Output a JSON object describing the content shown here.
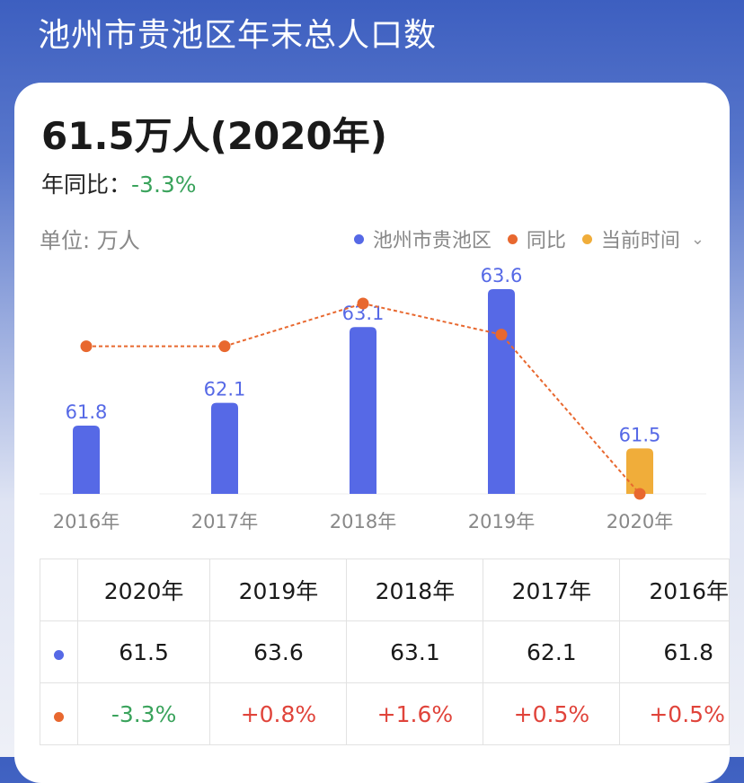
{
  "title": "池州市贵池区年末总人口数",
  "headline": "61.5万人(2020年)",
  "yoy": {
    "label": "年同比：",
    "value": "-3.3%"
  },
  "unit": "单位: 万人",
  "legend": [
    {
      "label": "池州市贵池区",
      "color": "#5669e6"
    },
    {
      "label": "同比",
      "color": "#e8682f"
    },
    {
      "label": "当前时间",
      "color": "#f0ad3a"
    }
  ],
  "legend_dropdown_icon": "chevron-down-icon",
  "chart_data": {
    "type": "bar",
    "categories": [
      "2016年",
      "2017年",
      "2018年",
      "2019年",
      "2020年"
    ],
    "series": [
      {
        "name": "池州市贵池区",
        "type": "bar",
        "values": [
          61.8,
          62.1,
          63.1,
          63.6,
          61.5
        ],
        "labels": [
          "61.8",
          "62.1",
          "63.1",
          "63.6",
          "61.5"
        ]
      },
      {
        "name": "同比",
        "type": "line",
        "values": [
          0.5,
          0.5,
          1.6,
          0.8,
          -3.3
        ]
      }
    ],
    "highlight_index": 4,
    "colors": {
      "bar": "#5669e6",
      "current": "#f0ad3a",
      "line": "#e8682f"
    }
  },
  "table": {
    "headers": [
      "2020年",
      "2019年",
      "2018年",
      "2017年",
      "2016年"
    ],
    "rows": [
      {
        "marker_color": "#5669e6",
        "cells": [
          "61.5",
          "63.6",
          "63.1",
          "62.1",
          "61.8"
        ]
      },
      {
        "marker_color": "#e8682f",
        "cells": [
          "-3.3%",
          "+0.8%",
          "+1.6%",
          "+0.5%",
          "+0.5%"
        ]
      }
    ]
  }
}
